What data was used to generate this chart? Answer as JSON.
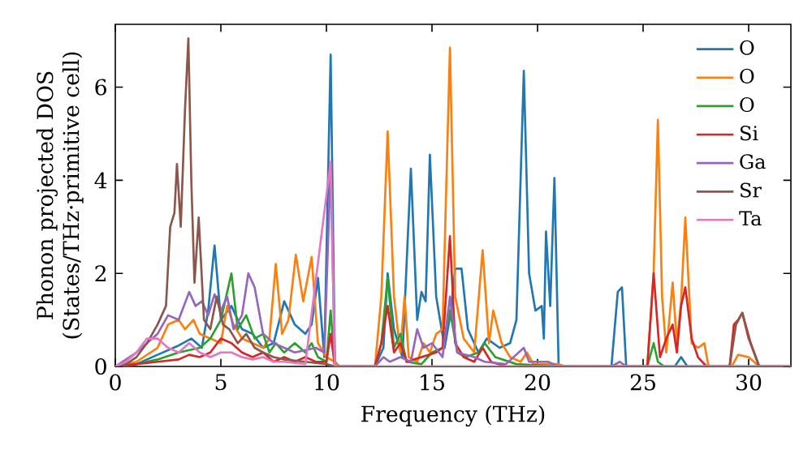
{
  "chart_data": {
    "type": "line",
    "xlabel": "Frequency (THz)",
    "ylabel": "Phonon projected DOS\n(States/THz·primitive cell)",
    "xlim": [
      0,
      32
    ],
    "ylim": [
      0,
      7.35
    ],
    "xticks": [
      0,
      5,
      10,
      15,
      20,
      25,
      30
    ],
    "yticks": [
      0,
      2,
      4,
      6
    ],
    "legend": "top right",
    "marker": "none",
    "line_style": "solid",
    "series": [
      {
        "name": "O",
        "color": "#1f77b4",
        "x": [
          0,
          1,
          2,
          3,
          3.6,
          4.1,
          4.4,
          4.7,
          5.0,
          5.5,
          6,
          6.5,
          7,
          7.5,
          8,
          8.5,
          9,
          9.3,
          9.6,
          9.9,
          10.2,
          10.4,
          10.6,
          12.3,
          12.7,
          12.9,
          13.2,
          13.6,
          14.0,
          14.3,
          14.5,
          14.7,
          14.9,
          15.2,
          15.6,
          15.9,
          16.1,
          16.4,
          16.7,
          17.2,
          17.6,
          18.2,
          18.7,
          19.0,
          19.35,
          19.6,
          19.9,
          20.2,
          20.3,
          20.4,
          20.6,
          20.8,
          21.0,
          23.5,
          23.8,
          24.0,
          24.2,
          26.5,
          26.8,
          27.1,
          32
        ],
        "values": [
          0,
          0.05,
          0.25,
          0.45,
          0.6,
          0.4,
          1.2,
          2.6,
          1.0,
          1.3,
          0.8,
          0.7,
          0.4,
          0.5,
          1.4,
          0.9,
          0.7,
          0.9,
          1.9,
          0.2,
          6.7,
          0.1,
          0,
          0,
          0.4,
          2.0,
          0.8,
          0.2,
          4.25,
          1.0,
          1.6,
          1.4,
          4.55,
          1.5,
          0.4,
          1.2,
          2.1,
          2.1,
          0.8,
          0.3,
          0.6,
          0.4,
          0.5,
          1.0,
          6.35,
          2.0,
          1.2,
          1.3,
          0.6,
          2.9,
          1.3,
          4.05,
          0,
          0,
          1.6,
          1.7,
          0,
          0,
          0.2,
          0,
          0
        ]
      },
      {
        "name": "O",
        "color": "#ff7f0e",
        "x": [
          0,
          1,
          2,
          2.5,
          3,
          3.3,
          3.7,
          4,
          4.5,
          5,
          5.3,
          5.6,
          6,
          6.5,
          7,
          7.3,
          7.6,
          7.9,
          8.2,
          8.55,
          8.9,
          9.3,
          9.6,
          10.0,
          10.4,
          10.6,
          12.3,
          12.6,
          12.9,
          13.2,
          13.5,
          13.7,
          13.9,
          14.3,
          14.6,
          14.9,
          15.2,
          15.5,
          15.85,
          16.1,
          16.5,
          17.0,
          17.4,
          17.7,
          17.9,
          18.3,
          18.7,
          19.2,
          19.5,
          19.8,
          21,
          21.3,
          25.2,
          25.5,
          25.7,
          25.9,
          26.1,
          26.4,
          26.6,
          26.8,
          27.0,
          27.3,
          27.6,
          27.9,
          28.1,
          29.2,
          29.5,
          30.0,
          30.5,
          32
        ],
        "values": [
          0,
          0.1,
          0.4,
          0.9,
          1.0,
          0.8,
          1.0,
          0.7,
          0.6,
          0.5,
          1.3,
          0.9,
          0.6,
          0.5,
          0.4,
          0.6,
          2.2,
          0.7,
          1.0,
          2.4,
          1.4,
          2.35,
          0.5,
          0.2,
          0.1,
          0,
          0,
          1.5,
          5.05,
          1.5,
          0.3,
          1.5,
          0.2,
          0.1,
          0.5,
          0.3,
          0.7,
          0.8,
          6.85,
          1.5,
          0.6,
          0.3,
          2.5,
          0.5,
          1.2,
          0.5,
          0.2,
          0.1,
          0.3,
          0.05,
          0.05,
          0,
          0,
          2.0,
          5.3,
          1.5,
          0.3,
          1.8,
          0.5,
          1.4,
          3.2,
          0.5,
          0.4,
          0.5,
          0,
          0,
          0.25,
          0.2,
          0,
          0
        ]
      },
      {
        "name": "O",
        "color": "#2ca02c",
        "x": [
          0,
          1,
          2,
          3,
          4,
          4.5,
          5,
          5.5,
          5.8,
          6.2,
          6.6,
          7,
          7.3,
          7.6,
          8,
          8.5,
          9,
          9.3,
          9.6,
          10,
          10.2,
          10.4,
          12.3,
          12.6,
          12.9,
          13.2,
          13.5,
          13.8,
          14.5,
          15,
          15.5,
          15.85,
          16.2,
          16.6,
          17.2,
          17.5,
          18,
          19,
          21,
          25.2,
          25.5,
          25.7,
          26,
          32
        ],
        "values": [
          0,
          0.05,
          0.15,
          0.3,
          0.4,
          0.6,
          1.0,
          2.0,
          0.8,
          1.1,
          0.6,
          0.7,
          0.3,
          0.5,
          0.3,
          0.5,
          0.3,
          0.5,
          0.2,
          0.1,
          1.2,
          0,
          0,
          0.5,
          1.9,
          0.4,
          0.7,
          0.1,
          0.05,
          0.3,
          0.4,
          1.2,
          0.3,
          0.2,
          0.3,
          0.5,
          0.2,
          0.05,
          0,
          0,
          0.5,
          0.1,
          0,
          0
        ]
      },
      {
        "name": "Si",
        "color": "#d62728",
        "x": [
          0,
          1,
          2,
          3,
          3.5,
          4,
          4.5,
          5,
          5.5,
          6,
          6.5,
          7,
          7.5,
          8,
          8.5,
          9,
          9.5,
          10,
          10.2,
          10.4,
          12.3,
          12.6,
          12.9,
          13.2,
          13.5,
          13.8,
          14.5,
          15.2,
          15.5,
          15.85,
          16.1,
          16.5,
          17,
          17.4,
          17.8,
          18.5,
          21,
          25.2,
          25.5,
          25.8,
          26.1,
          26.4,
          26.6,
          26.8,
          27.0,
          27.3,
          27.6,
          28,
          29.1,
          29.3,
          29.5,
          29.7,
          30.0,
          30.5,
          32
        ],
        "values": [
          0,
          0.05,
          0.1,
          0.15,
          0.25,
          0.2,
          0.3,
          0.6,
          0.5,
          0.3,
          0.2,
          0.3,
          0.1,
          0.2,
          0.1,
          0.2,
          0.1,
          0.1,
          0.7,
          0,
          0,
          0.5,
          1.3,
          0.3,
          0.5,
          0.1,
          0.2,
          0.3,
          0.4,
          2.8,
          0.5,
          0.2,
          0.1,
          0.4,
          0.1,
          0,
          0,
          0,
          2.0,
          0.2,
          0.6,
          0.9,
          0.3,
          1.3,
          1.7,
          0.6,
          0.2,
          0,
          0,
          0.9,
          1.0,
          1.15,
          0.6,
          0,
          0
        ]
      },
      {
        "name": "Ga",
        "color": "#9467bd",
        "x": [
          0,
          1,
          2,
          2.5,
          3,
          3.5,
          3.8,
          4.1,
          4.4,
          4.7,
          5,
          5.3,
          5.6,
          6,
          6.3,
          6.6,
          7,
          7.5,
          8,
          8.5,
          9,
          9.5,
          9.9,
          10.2,
          10.4,
          12.3,
          12.7,
          13.0,
          13.5,
          14.0,
          14.3,
          14.6,
          15,
          15.5,
          15.85,
          16.2,
          17,
          17.5,
          18.5,
          19.35,
          19.6,
          20.5,
          21,
          23.5,
          23.9,
          24.2,
          32
        ],
        "values": [
          0,
          0.3,
          0.7,
          1.1,
          1.0,
          1.6,
          1.3,
          1.4,
          1.1,
          1.55,
          1.2,
          1.5,
          0.8,
          1.1,
          2.0,
          1.7,
          0.7,
          0.5,
          0.4,
          0.3,
          0.35,
          0.4,
          0.3,
          4.3,
          0,
          0,
          0.2,
          0.1,
          0.2,
          0.1,
          0.8,
          0.4,
          0.5,
          0.2,
          1.5,
          0.3,
          0.2,
          0.1,
          0.05,
          0.4,
          0.1,
          0.1,
          0,
          0,
          0.1,
          0,
          0
        ]
      },
      {
        "name": "Sr",
        "color": "#8c564b",
        "x": [
          0,
          0.5,
          1,
          1.5,
          2,
          2.4,
          2.6,
          2.8,
          2.92,
          3.1,
          3.3,
          3.46,
          3.6,
          3.75,
          3.95,
          4.2,
          4.5,
          4.8,
          5.1,
          5.4,
          5.8,
          6.2,
          6.6,
          7,
          7.5,
          8,
          9,
          10,
          10.4,
          29.1,
          29.4,
          29.7,
          30.1,
          30.5,
          32
        ],
        "values": [
          0,
          0.05,
          0.2,
          0.5,
          0.9,
          1.3,
          3.0,
          3.3,
          4.35,
          3.0,
          5.5,
          7.05,
          4.0,
          1.8,
          3.2,
          1.0,
          0.8,
          1.5,
          0.9,
          0.8,
          0.5,
          0.7,
          0.4,
          0.3,
          0.2,
          0.15,
          0.1,
          0.05,
          0,
          0,
          0.9,
          1.15,
          0.5,
          0,
          0
        ]
      },
      {
        "name": "Ta",
        "color": "#e377c2",
        "x": [
          0,
          0.5,
          1,
          1.5,
          2,
          2.5,
          3,
          3.5,
          4,
          4.5,
          5,
          5.5,
          6,
          6.5,
          7,
          7.5,
          8,
          9,
          10.2,
          10.4,
          32
        ],
        "values": [
          0,
          0.1,
          0.3,
          0.6,
          0.6,
          0.4,
          0.3,
          0.5,
          0.3,
          0.2,
          0.3,
          0.3,
          0.2,
          0.15,
          0.2,
          0.1,
          0.1,
          0.05,
          4.4,
          0,
          0
        ]
      }
    ]
  }
}
